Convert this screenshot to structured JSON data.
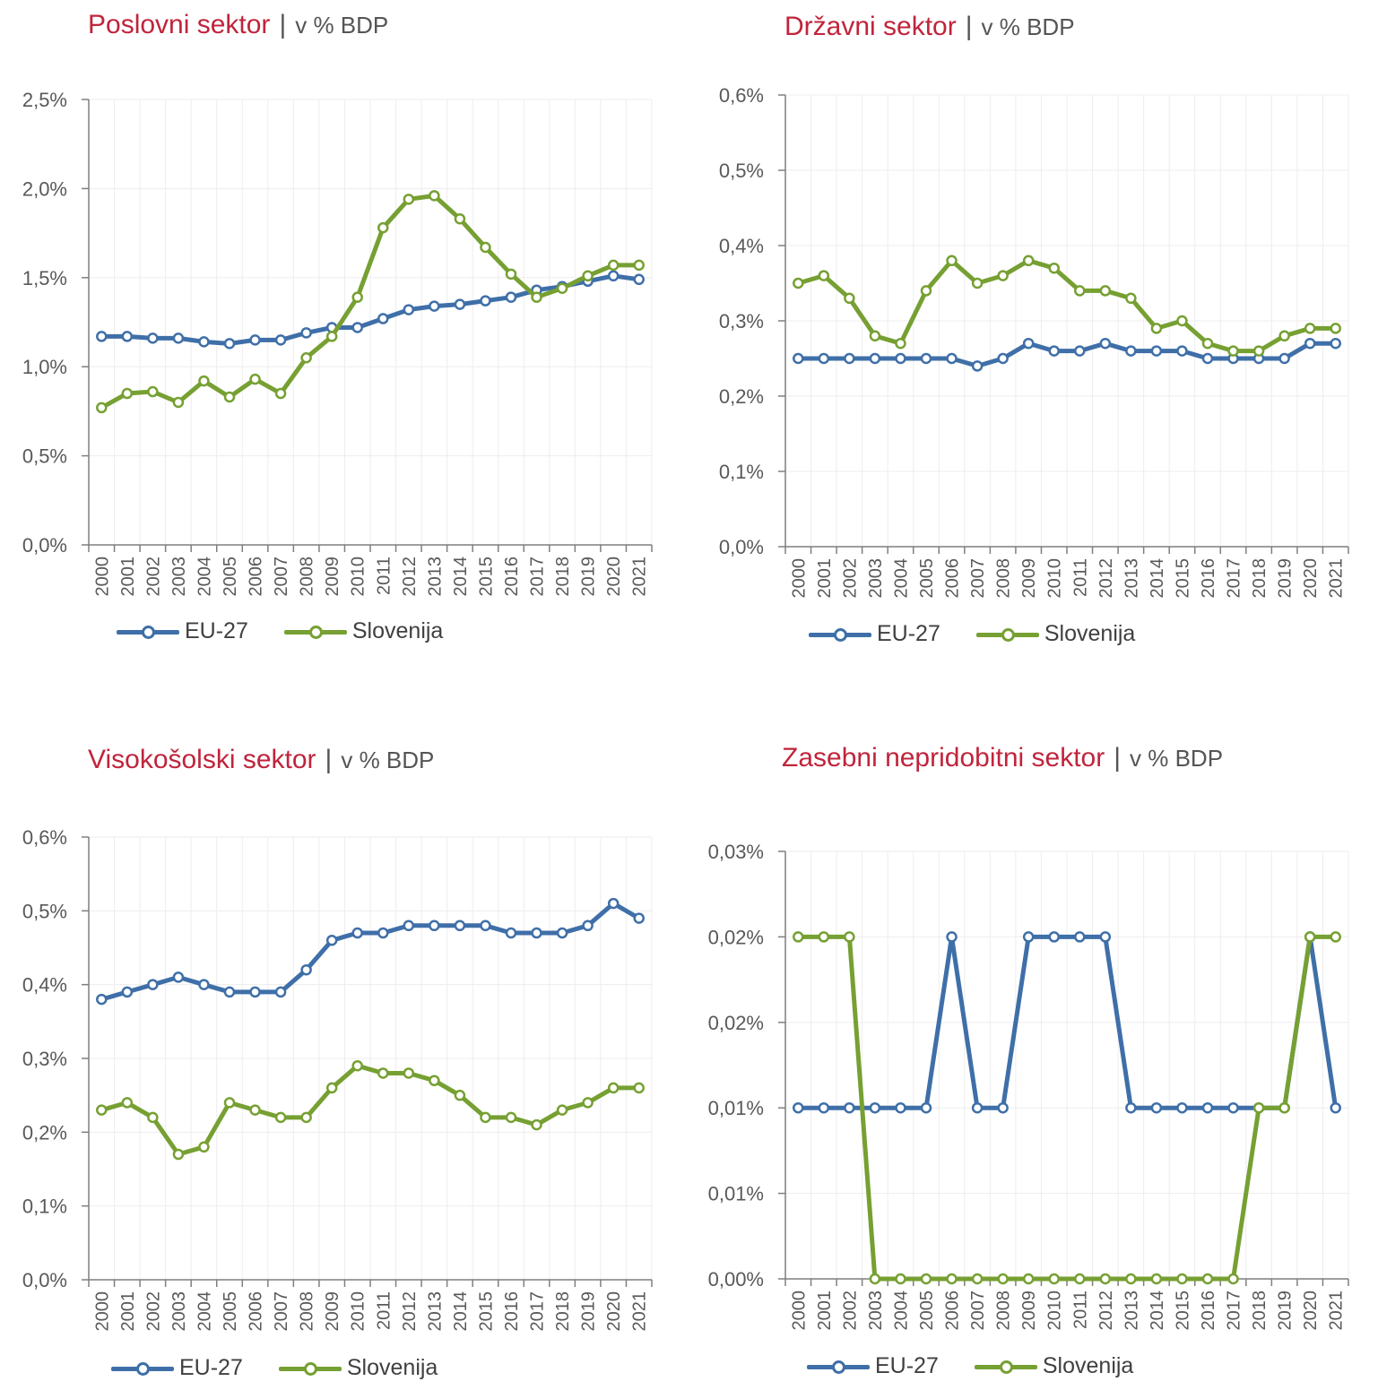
{
  "colors": {
    "eu": "#3f6fa8",
    "si": "#76a032",
    "title": "#c0243c",
    "axis": "#7f7f7f",
    "grid": "#ededed",
    "text": "#595959"
  },
  "legend": {
    "eu": "EU-27",
    "si": "Slovenija"
  },
  "years": [
    "2000",
    "2001",
    "2002",
    "2003",
    "2004",
    "2005",
    "2006",
    "2007",
    "2008",
    "2009",
    "2010",
    "2011",
    "2012",
    "2013",
    "2014",
    "2015",
    "2016",
    "2017",
    "2018",
    "2019",
    "2020",
    "2021"
  ],
  "panels": [
    {
      "title": "Poslovni sektor",
      "separator": "|",
      "unit": "v % BDP"
    },
    {
      "title": "Državni sektor",
      "separator": "|",
      "unit": "v % BDP"
    },
    {
      "title": "Visokošolski sektor",
      "separator": "|",
      "unit": "v % BDP"
    },
    {
      "title": "Zasebni nepridobitni sektor",
      "separator": "|",
      "unit": "v % BDP"
    }
  ],
  "chart_data": [
    {
      "type": "line",
      "title": "Poslovni sektor",
      "ylim": [
        0,
        2.5
      ],
      "y_tick_labels": [
        "0,0%",
        "0,5%",
        "1,0%",
        "1,5%",
        "2,0%",
        "2,5%"
      ],
      "x": [
        "2000",
        "2001",
        "2002",
        "2003",
        "2004",
        "2005",
        "2006",
        "2007",
        "2008",
        "2009",
        "2010",
        "2011",
        "2012",
        "2013",
        "2014",
        "2015",
        "2016",
        "2017",
        "2018",
        "2019",
        "2020",
        "2021"
      ],
      "series": [
        {
          "name": "EU-27",
          "values": [
            1.17,
            1.17,
            1.16,
            1.16,
            1.14,
            1.13,
            1.15,
            1.15,
            1.19,
            1.22,
            1.22,
            1.27,
            1.32,
            1.34,
            1.35,
            1.37,
            1.39,
            1.43,
            1.45,
            1.48,
            1.51,
            1.49
          ]
        },
        {
          "name": "Slovenija",
          "values": [
            0.77,
            0.85,
            0.86,
            0.8,
            0.92,
            0.83,
            0.93,
            0.85,
            1.05,
            1.17,
            1.39,
            1.78,
            1.94,
            1.96,
            1.83,
            1.67,
            1.52,
            1.39,
            1.44,
            1.51,
            1.57,
            1.57
          ]
        }
      ],
      "grid": true,
      "legend": "bottom"
    },
    {
      "type": "line",
      "title": "Državni sektor",
      "ylim": [
        0,
        0.6
      ],
      "y_tick_labels": [
        "0,0%",
        "0,1%",
        "0,2%",
        "0,3%",
        "0,4%",
        "0,5%",
        "0,6%"
      ],
      "x": [
        "2000",
        "2001",
        "2002",
        "2003",
        "2004",
        "2005",
        "2006",
        "2007",
        "2008",
        "2009",
        "2010",
        "2011",
        "2012",
        "2013",
        "2014",
        "2015",
        "2016",
        "2017",
        "2018",
        "2019",
        "2020",
        "2021"
      ],
      "series": [
        {
          "name": "EU-27",
          "values": [
            0.25,
            0.25,
            0.25,
            0.25,
            0.25,
            0.25,
            0.25,
            0.24,
            0.25,
            0.27,
            0.26,
            0.26,
            0.27,
            0.26,
            0.26,
            0.26,
            0.25,
            0.25,
            0.25,
            0.25,
            0.27,
            0.27
          ]
        },
        {
          "name": "Slovenija",
          "values": [
            0.35,
            0.36,
            0.33,
            0.28,
            0.27,
            0.34,
            0.38,
            0.35,
            0.36,
            0.38,
            0.37,
            0.34,
            0.34,
            0.33,
            0.29,
            0.3,
            0.27,
            0.26,
            0.26,
            0.28,
            0.29,
            0.29
          ]
        }
      ],
      "grid": true,
      "legend": "bottom"
    },
    {
      "type": "line",
      "title": "Visokošolski sektor",
      "ylim": [
        0,
        0.6
      ],
      "y_tick_labels": [
        "0,0%",
        "0,1%",
        "0,2%",
        "0,3%",
        "0,4%",
        "0,5%",
        "0,6%"
      ],
      "x": [
        "2000",
        "2001",
        "2002",
        "2003",
        "2004",
        "2005",
        "2006",
        "2007",
        "2008",
        "2009",
        "2010",
        "2011",
        "2012",
        "2013",
        "2014",
        "2015",
        "2016",
        "2017",
        "2018",
        "2019",
        "2020",
        "2021"
      ],
      "series": [
        {
          "name": "EU-27",
          "values": [
            0.38,
            0.39,
            0.4,
            0.41,
            0.4,
            0.39,
            0.39,
            0.39,
            0.42,
            0.46,
            0.47,
            0.47,
            0.48,
            0.48,
            0.48,
            0.48,
            0.47,
            0.47,
            0.47,
            0.48,
            0.51,
            0.49
          ]
        },
        {
          "name": "Slovenija",
          "values": [
            0.23,
            0.24,
            0.22,
            0.17,
            0.18,
            0.24,
            0.23,
            0.22,
            0.22,
            0.26,
            0.29,
            0.28,
            0.28,
            0.27,
            0.25,
            0.22,
            0.22,
            0.21,
            0.23,
            0.24,
            0.26,
            0.26
          ]
        }
      ],
      "grid": true,
      "legend": "bottom"
    },
    {
      "type": "line",
      "title": "Zasebni nepridobitni sektor",
      "ylim": [
        0,
        0.025
      ],
      "y_tick_labels": [
        "0,00%",
        "0,01%",
        "0,01%",
        "0,02%",
        "0,02%",
        "0,03%"
      ],
      "x": [
        "2000",
        "2001",
        "2002",
        "2003",
        "2004",
        "2005",
        "2006",
        "2007",
        "2008",
        "2009",
        "2010",
        "2011",
        "2012",
        "2013",
        "2014",
        "2015",
        "2016",
        "2017",
        "2018",
        "2019",
        "2020",
        "2021"
      ],
      "series": [
        {
          "name": "EU-27",
          "values": [
            0.01,
            0.01,
            0.01,
            0.01,
            0.01,
            0.01,
            0.02,
            0.01,
            0.01,
            0.02,
            0.02,
            0.02,
            0.02,
            0.01,
            0.01,
            0.01,
            0.01,
            0.01,
            0.01,
            0.01,
            0.02,
            0.01
          ]
        },
        {
          "name": "Slovenija",
          "values": [
            0.02,
            0.02,
            0.02,
            0.0,
            0.0,
            0.0,
            0.0,
            0.0,
            0.0,
            0.0,
            0.0,
            0.0,
            0.0,
            0.0,
            0.0,
            0.0,
            0.0,
            0.0,
            0.01,
            0.01,
            0.02,
            0.02
          ]
        }
      ],
      "grid": true,
      "legend": "bottom"
    }
  ]
}
